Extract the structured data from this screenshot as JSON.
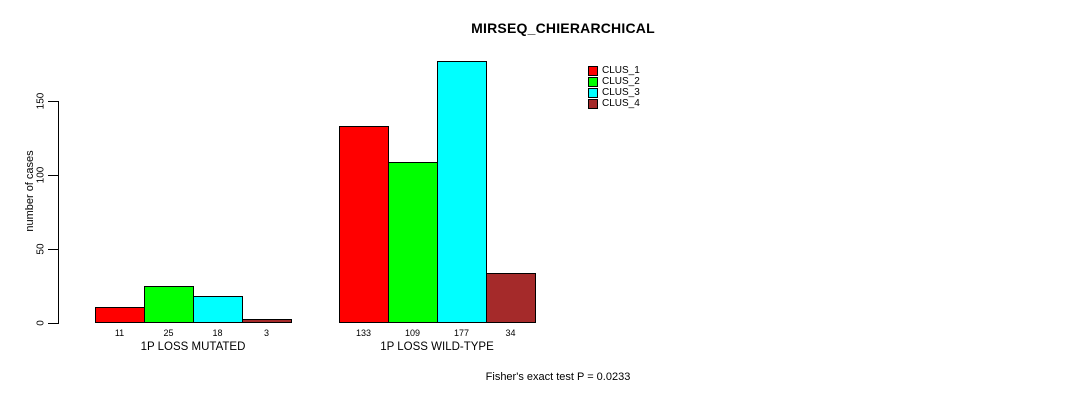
{
  "title": "MIRSEQ_CHIERARCHICAL",
  "footer": "Fisher's exact test P = 0.0233",
  "chart_data": {
    "type": "bar",
    "title": "MIRSEQ_CHIERARCHICAL",
    "xlabel": "",
    "ylabel": "number of cases",
    "categories": [
      "1P LOSS MUTATED",
      "1P LOSS WILD-TYPE"
    ],
    "series": [
      {
        "name": "CLUS_1",
        "color": "#ff0000",
        "values": [
          11,
          133
        ]
      },
      {
        "name": "CLUS_2",
        "color": "#00ff00",
        "values": [
          25,
          109
        ]
      },
      {
        "name": "CLUS_3",
        "color": "#00ffff",
        "values": [
          18,
          177
        ]
      },
      {
        "name": "CLUS_4",
        "color": "#a52a2a",
        "values": [
          3,
          34
        ]
      }
    ],
    "bar_value_labels": [
      [
        11,
        25,
        18,
        3
      ],
      [
        133,
        109,
        177,
        34
      ]
    ],
    "yticks": [
      0,
      50,
      100,
      150
    ],
    "ylim": [
      0,
      180
    ],
    "grid": false,
    "legend_position": "top-right",
    "annotation": "Fisher's exact test P = 0.0233",
    "axis_color": "#000000",
    "background_color": "#ffffff"
  }
}
